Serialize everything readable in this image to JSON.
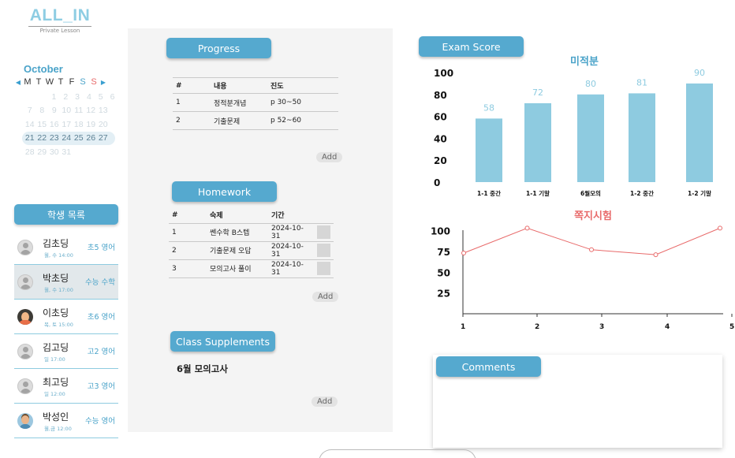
{
  "logo": {
    "title": "ALL_IN",
    "subtitle": "Private Lesson"
  },
  "calendar": {
    "month": "October",
    "prev_icon": "◀",
    "next_icon": "▶",
    "weekdays": [
      "M",
      "T",
      "W",
      "T",
      "F",
      "S",
      "S"
    ],
    "weeks": [
      [
        "1",
        "2",
        "3",
        "4",
        "5",
        "6"
      ],
      [
        "7",
        "8",
        "9",
        "10",
        "11",
        "12",
        "13"
      ],
      [
        "14",
        "15",
        "16",
        "17",
        "18",
        "19",
        "20"
      ],
      [
        "21",
        "22",
        "23",
        "24",
        "25",
        "26",
        "27"
      ],
      [
        "28",
        "29",
        "30",
        "31"
      ]
    ]
  },
  "students": {
    "header": "학생 목록",
    "items": [
      {
        "name": "김초딩",
        "time": "월, 수 14:00",
        "class": "초5 영어",
        "avatar": "default-avatar-icon"
      },
      {
        "name": "박초딩",
        "time": "월, 수 17:00",
        "class": "수능 수학",
        "avatar": "default-avatar-icon"
      },
      {
        "name": "이초딩",
        "time": "목, 토 15:00",
        "class": "초6 영어",
        "avatar": "girl-avatar-icon"
      },
      {
        "name": "김고딩",
        "time": "일 17:00",
        "class": "고2 영어",
        "avatar": "default-avatar-icon"
      },
      {
        "name": "최고딩",
        "time": "일 12:00",
        "class": "고3 영어",
        "avatar": "default-avatar-icon"
      },
      {
        "name": "박성인",
        "time": "월,금 12:00",
        "class": "수능 영어",
        "avatar": "boy-avatar-icon"
      }
    ]
  },
  "progress": {
    "title": "Progress",
    "columns": [
      "#",
      "내용",
      "진도"
    ],
    "rows": [
      [
        "1",
        "정적분개념",
        "p 30~50"
      ],
      [
        "2",
        "기출문제",
        "p 52~60"
      ]
    ],
    "add_label": "Add"
  },
  "homework": {
    "title": "Homework",
    "columns": [
      "#",
      "숙제",
      "기간"
    ],
    "rows": [
      [
        "1",
        "쎈수학 B스텝",
        "2024-10-31"
      ],
      [
        "2",
        "기출문제 오답",
        "2024-10-31"
      ],
      [
        "3",
        "모의고사 풀이",
        "2024-10-31"
      ]
    ],
    "add_label": "Add"
  },
  "supplements": {
    "title": "Class Supplements",
    "items": [
      "6월 모의고사"
    ],
    "add_label": "Add"
  },
  "exam_score": {
    "title": "Exam Score"
  },
  "comments": {
    "title": "Comments"
  },
  "colors": {
    "accent": "#55a9cf",
    "bar": "#8ecbe0",
    "quiz_line": "#e86a6a",
    "subject_title": "#4aa3c9"
  },
  "chart_data": [
    {
      "type": "bar",
      "title": "미적분",
      "categories": [
        "1-1 중간",
        "1-1 기말",
        "6월모의",
        "1-2 중간",
        "1-2 기말"
      ],
      "values": [
        58,
        72,
        80,
        81,
        90
      ],
      "yticks": [
        0,
        20,
        40,
        60,
        80,
        100
      ],
      "ylim": [
        0,
        100
      ],
      "grid": false
    },
    {
      "type": "line",
      "title": "쪽지시험",
      "x": [
        1,
        2,
        3,
        4,
        5
      ],
      "values": [
        73,
        103,
        77,
        71,
        103
      ],
      "yticks": [
        25,
        50,
        75,
        100
      ],
      "xticks": [
        1,
        2,
        3,
        4,
        5
      ],
      "xlim": [
        1,
        5
      ],
      "ylim": [
        0,
        110
      ],
      "grid": false
    }
  ]
}
